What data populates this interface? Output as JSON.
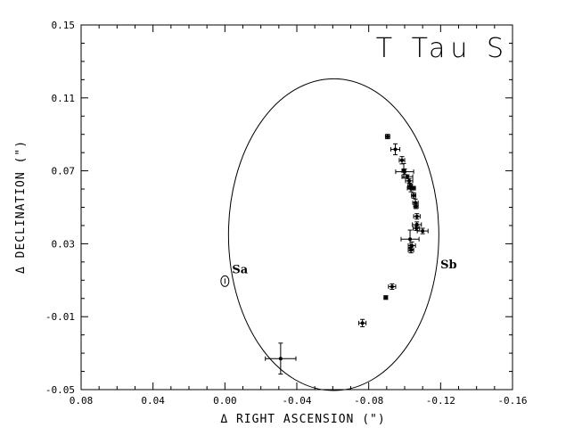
{
  "chart_data": {
    "type": "scatter",
    "title": "T Tau S",
    "xlabel": "Δ RIGHT ASCENSION (\")",
    "ylabel": "Δ DECLINATION (\")",
    "xlim": [
      0.08,
      -0.16
    ],
    "ylim": [
      -0.05,
      0.15
    ],
    "xticks": [
      0.08,
      0.04,
      0.0,
      -0.04,
      -0.08,
      -0.12,
      -0.16
    ],
    "xtick_labels": [
      "0.08",
      "0.04",
      "0.00",
      "-0.04",
      "-0.08",
      "-0.12",
      "-0.16"
    ],
    "yticks": [
      -0.05,
      -0.01,
      0.03,
      0.07,
      0.11,
      0.15
    ],
    "ytick_labels": [
      "-0.05",
      "-0.01",
      "0.03",
      "0.07",
      "0.11",
      "0.15"
    ],
    "grid": false,
    "primary": {
      "label": "Sa",
      "x": 0.0,
      "y": 0.0095
    },
    "secondary_label": {
      "text": "Sb",
      "x": -0.1245,
      "y": 0.0165
    },
    "orbit": {
      "center_x": -0.0605,
      "center_y": 0.035,
      "semi_axis_ra": 0.0585,
      "semi_axis_dec": 0.0855
    },
    "points": [
      {
        "x": -0.0905,
        "y": 0.0888,
        "xerr": 0.0012,
        "yerr": 0.0012
      },
      {
        "x": -0.0948,
        "y": 0.0818,
        "xerr": 0.0025,
        "yerr": 0.003
      },
      {
        "x": -0.0985,
        "y": 0.0758,
        "xerr": 0.0015,
        "yerr": 0.002
      },
      {
        "x": -0.0995,
        "y": 0.07,
        "xerr": 0.001,
        "yerr": 0.004
      },
      {
        "x": -0.1,
        "y": 0.0695,
        "xerr": 0.005,
        "yerr": 0.0015
      },
      {
        "x": -0.1015,
        "y": 0.0668,
        "xerr": 0.003,
        "yerr": 0.001
      },
      {
        "x": -0.1025,
        "y": 0.0645,
        "xerr": 0.002,
        "yerr": 0.0012
      },
      {
        "x": -0.103,
        "y": 0.0615,
        "xerr": 0.0012,
        "yerr": 0.0015
      },
      {
        "x": -0.1035,
        "y": 0.0605,
        "xerr": 0.002,
        "yerr": 0.002
      },
      {
        "x": -0.1045,
        "y": 0.0605,
        "xerr": 0.0015,
        "yerr": 0.001
      },
      {
        "x": -0.105,
        "y": 0.0565,
        "xerr": 0.0012,
        "yerr": 0.0015
      },
      {
        "x": -0.106,
        "y": 0.0525,
        "xerr": 0.0015,
        "yerr": 0.002
      },
      {
        "x": -0.1063,
        "y": 0.0505,
        "xerr": 0.0012,
        "yerr": 0.0012
      },
      {
        "x": -0.1068,
        "y": 0.045,
        "xerr": 0.0018,
        "yerr": 0.0015
      },
      {
        "x": -0.1068,
        "y": 0.0405,
        "xerr": 0.0025,
        "yerr": 0.0015
      },
      {
        "x": -0.1065,
        "y": 0.0385,
        "xerr": 0.0018,
        "yerr": 0.0012
      },
      {
        "x": -0.11,
        "y": 0.037,
        "xerr": 0.003,
        "yerr": 0.0015
      },
      {
        "x": -0.103,
        "y": 0.0325,
        "xerr": 0.005,
        "yerr": 0.005
      },
      {
        "x": -0.104,
        "y": 0.029,
        "xerr": 0.002,
        "yerr": 0.002
      },
      {
        "x": -0.1035,
        "y": 0.0265,
        "xerr": 0.0015,
        "yerr": 0.0015
      },
      {
        "x": -0.093,
        "y": 0.0065,
        "xerr": 0.002,
        "yerr": 0.0015
      },
      {
        "x": -0.0895,
        "y": 0.0005,
        "xerr": 0.001,
        "yerr": 0.001
      },
      {
        "x": -0.0765,
        "y": -0.0135,
        "xerr": 0.002,
        "yerr": 0.002
      },
      {
        "x": -0.031,
        "y": -0.033,
        "xerr": 0.0085,
        "yerr": 0.0085
      }
    ]
  }
}
